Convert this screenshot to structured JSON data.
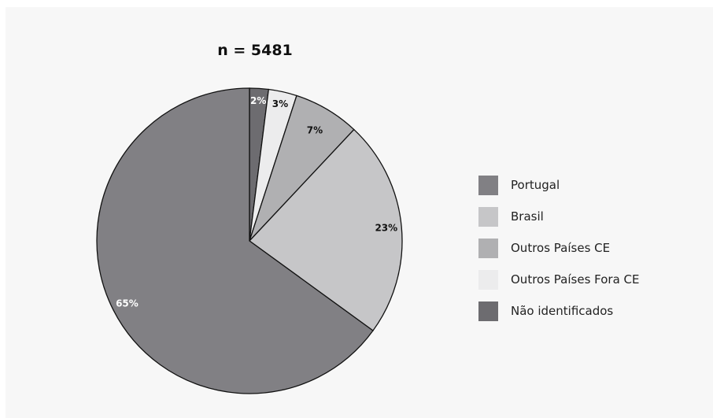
{
  "chart_data": {
    "type": "pie",
    "title": "n = 5481",
    "slices": [
      {
        "label": "Não identificados",
        "value": 2,
        "value_label": "2%",
        "color": "#6d6c70",
        "label_color": "#ffffff"
      },
      {
        "label": "Outros Países Fora CE",
        "value": 3,
        "value_label": "3%",
        "color": "#ececed",
        "label_color": "#111111"
      },
      {
        "label": "Outros Países CE",
        "value": 7,
        "value_label": "7%",
        "color": "#b0b0b2",
        "label_color": "#111111"
      },
      {
        "label": "Brasil",
        "value": 23,
        "value_label": "23%",
        "color": "#c6c6c8",
        "label_color": "#111111"
      },
      {
        "label": "Portugal",
        "value": 65,
        "value_label": "65%",
        "color": "#818084",
        "label_color": "#ffffff"
      }
    ],
    "legend": {
      "position": "right",
      "items": [
        {
          "label": "Portugal",
          "color": "#818084"
        },
        {
          "label": "Brasil",
          "color": "#c6c6c8"
        },
        {
          "label": "Outros Países CE",
          "color": "#b0b0b2"
        },
        {
          "label": "Outros Países Fora CE",
          "color": "#ececed"
        },
        {
          "label": "Não identificados",
          "color": "#6d6c70"
        }
      ]
    }
  }
}
